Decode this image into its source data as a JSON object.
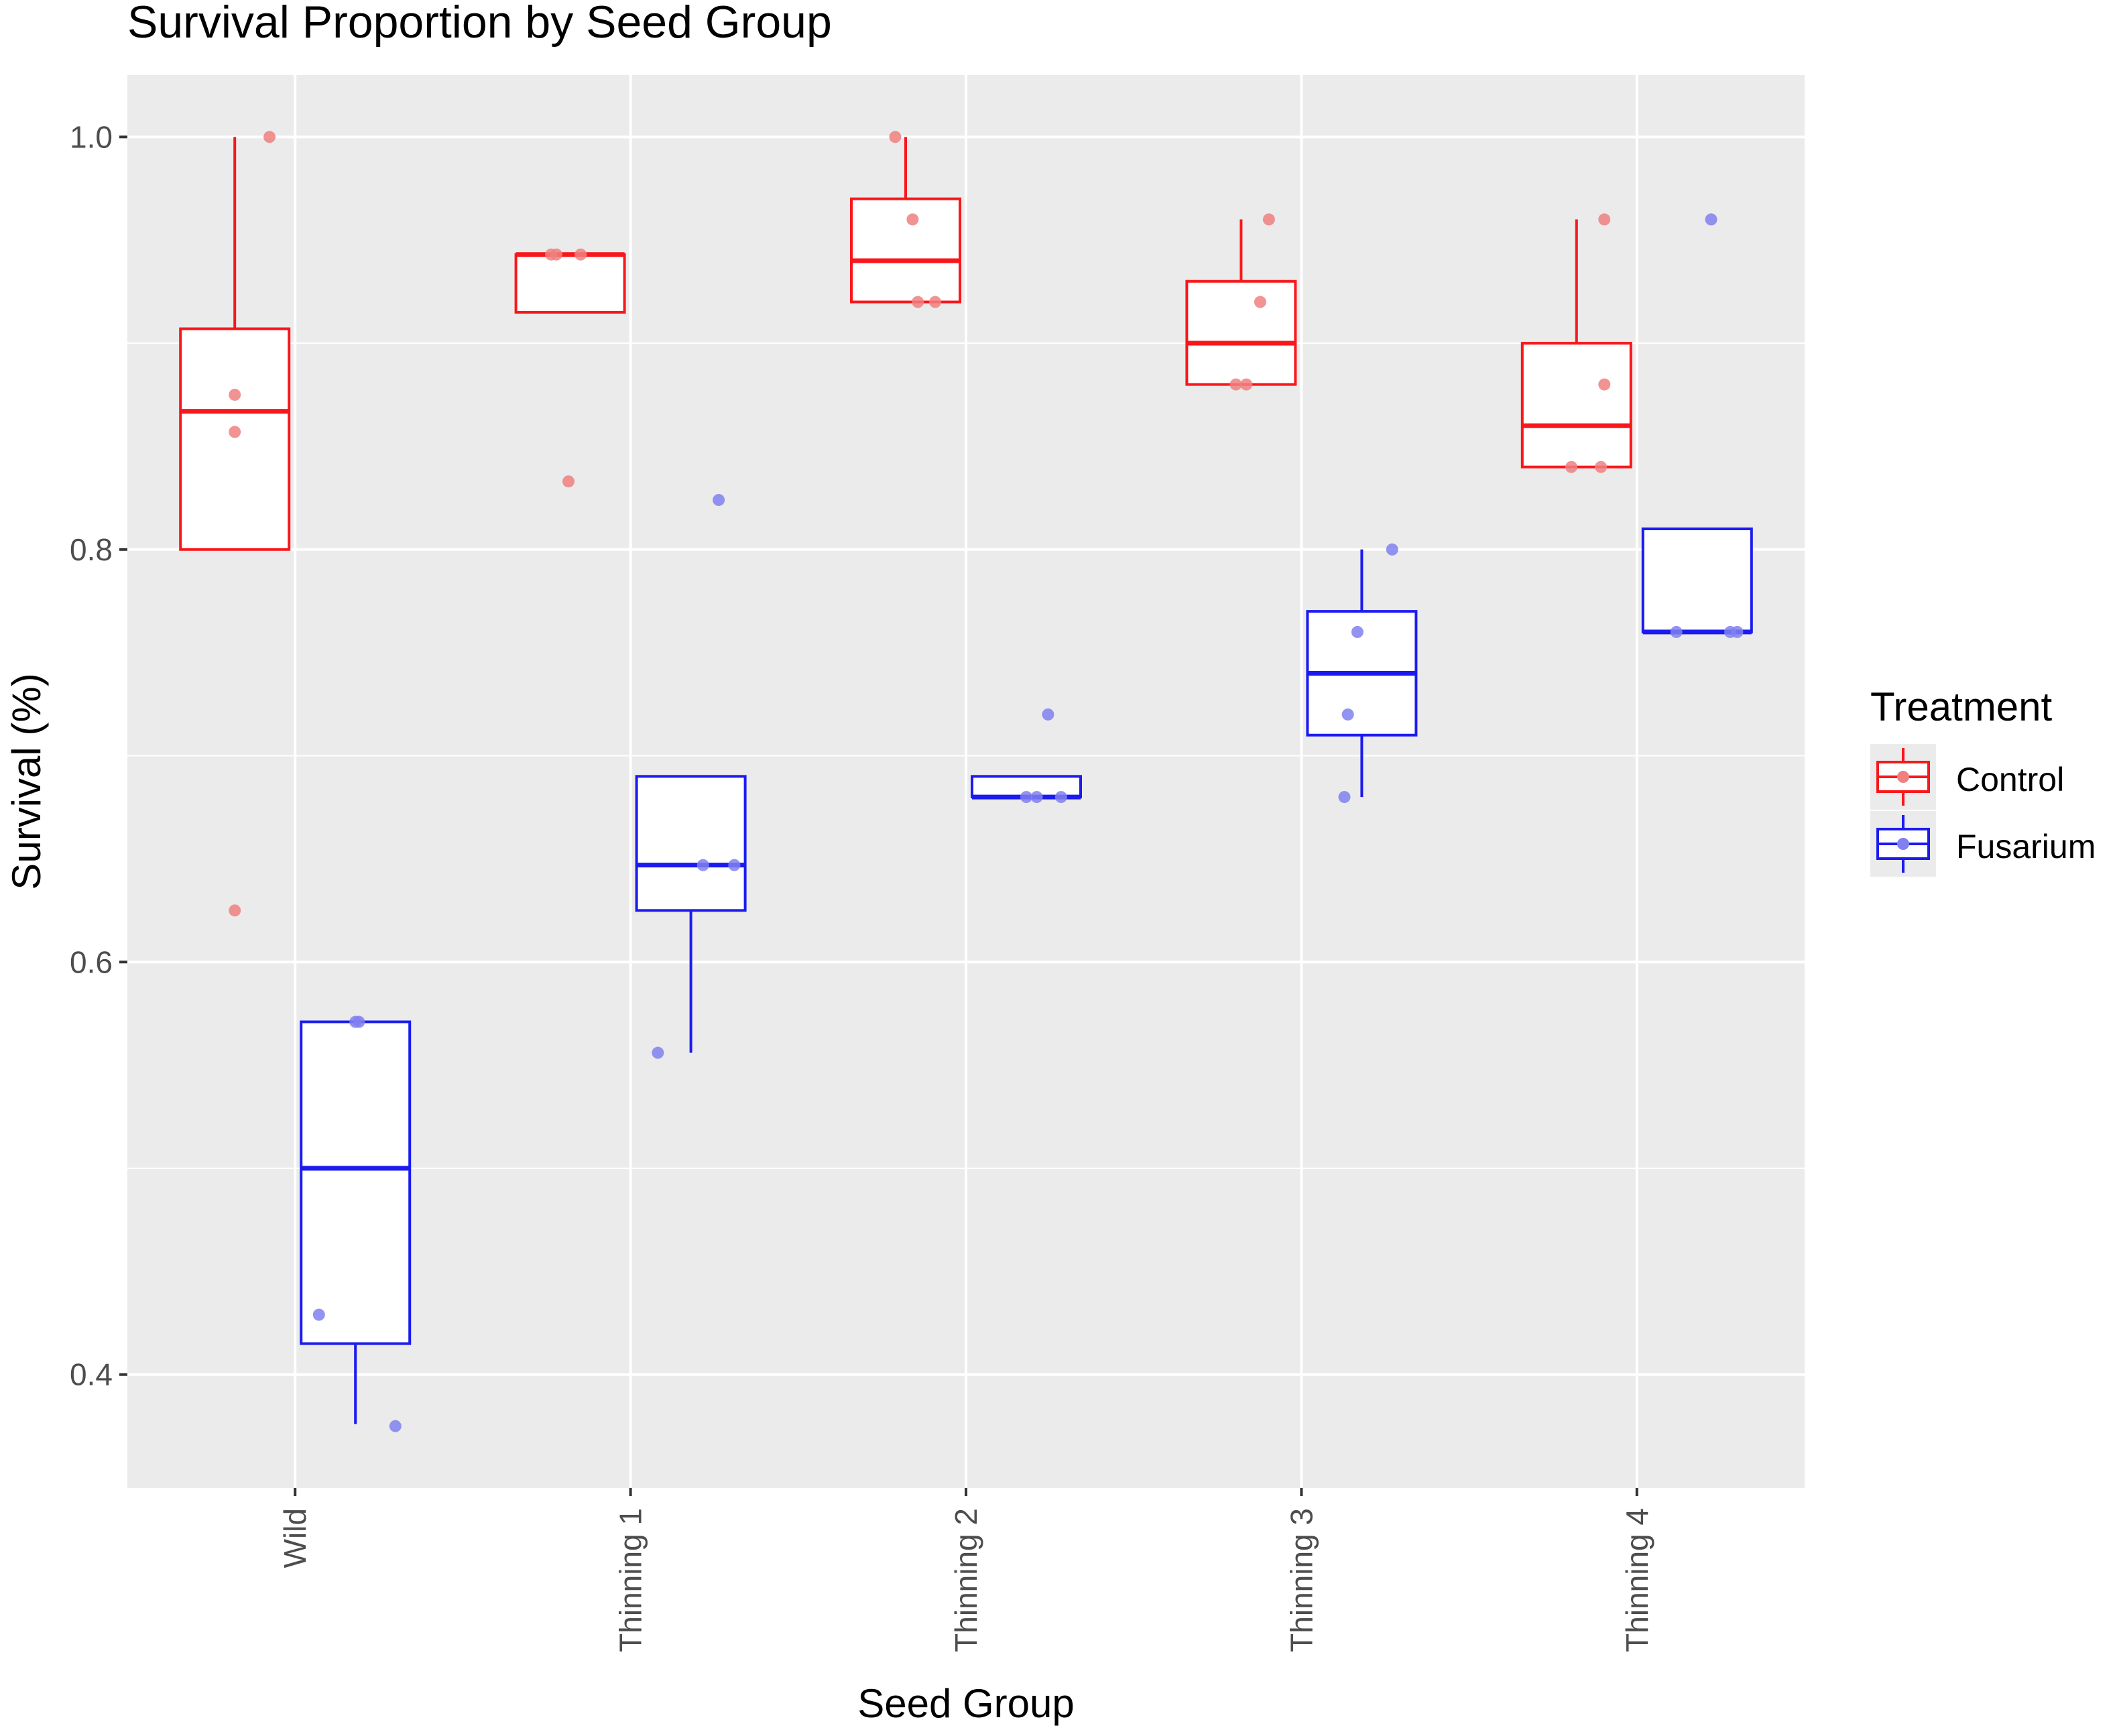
{
  "chart_data": {
    "type": "boxplot",
    "title": "Survival Proportion by Seed Group",
    "xlabel": "Seed Group",
    "ylabel": "Survival (%)",
    "ylim": [
      0.345,
      1.03
    ],
    "yticks": [
      0.4,
      0.6,
      0.8,
      1.0
    ],
    "ytick_labels": [
      "0.4",
      "0.6",
      "0.8",
      "1.0"
    ],
    "categories": [
      "Wild",
      "Thinning 1",
      "Thinning 2",
      "Thinning 3",
      "Thinning 4"
    ],
    "legend": {
      "title": "Treatment",
      "position": "right",
      "entries": [
        "Control",
        "Fusarium"
      ]
    },
    "colors": {
      "panel_bg": "#ebebeb",
      "grid": "#ffffff",
      "control": "#f8171b",
      "fusarium": "#1b1bf0",
      "control_point": "#f08080",
      "fusarium_point": "#8080f0",
      "text": "#000000",
      "tick_text": "#4d4d4d"
    },
    "series": [
      {
        "name": "Control",
        "boxes": [
          {
            "category": "Wild",
            "q1": 0.8,
            "median": 0.867,
            "q3": 0.907,
            "whisker_low": 0.8,
            "whisker_high": 1.0
          },
          {
            "category": "Thinning 1",
            "q1": 0.915,
            "median": 0.943,
            "q3": 0.943,
            "whisker_low": 0.915,
            "whisker_high": 0.943
          },
          {
            "category": "Thinning 2",
            "q1": 0.92,
            "median": 0.94,
            "q3": 0.97,
            "whisker_low": 0.92,
            "whisker_high": 1.0
          },
          {
            "category": "Thinning 3",
            "q1": 0.88,
            "median": 0.9,
            "q3": 0.93,
            "whisker_low": 0.88,
            "whisker_high": 0.96
          },
          {
            "category": "Thinning 4",
            "q1": 0.84,
            "median": 0.86,
            "q3": 0.9,
            "whisker_low": 0.84,
            "whisker_high": 0.96
          }
        ],
        "points": [
          {
            "category": "Wild",
            "values": [
              1.0,
              0.875,
              0.857,
              0.625
            ],
            "jitter": [
              0.9,
              0.5,
              0.5,
              0.5
            ]
          },
          {
            "category": "Thinning 1",
            "values": [
              0.943,
              0.943,
              0.943,
              0.833
            ],
            "jitter": [
              0.28,
              0.34,
              0.62,
              0.48
            ]
          },
          {
            "category": "Thinning 2",
            "values": [
              1.0,
              0.96,
              0.92,
              0.92
            ],
            "jitter": [
              0.38,
              0.58,
              0.64,
              0.84
            ]
          },
          {
            "category": "Thinning 3",
            "values": [
              0.96,
              0.92,
              0.88,
              0.88
            ],
            "jitter": [
              0.82,
              0.72,
              0.44,
              0.56
            ]
          },
          {
            "category": "Thinning 4",
            "values": [
              0.96,
              0.88,
              0.84,
              0.84
            ],
            "jitter": [
              0.82,
              0.82,
              0.44,
              0.78
            ]
          }
        ]
      },
      {
        "name": "Fusarium",
        "boxes": [
          {
            "category": "Wild",
            "q1": 0.415,
            "median": 0.5,
            "q3": 0.571,
            "whisker_low": 0.376,
            "whisker_high": 0.571
          },
          {
            "category": "Thinning 1",
            "q1": 0.625,
            "median": 0.647,
            "q3": 0.69,
            "whisker_low": 0.556,
            "whisker_high": 0.69
          },
          {
            "category": "Thinning 2",
            "q1": 0.68,
            "median": 0.68,
            "q3": 0.69,
            "whisker_low": 0.68,
            "whisker_high": 0.69
          },
          {
            "category": "Thinning 3",
            "q1": 0.71,
            "median": 0.74,
            "q3": 0.77,
            "whisker_low": 0.68,
            "whisker_high": 0.8
          },
          {
            "category": "Thinning 4",
            "q1": 0.76,
            "median": 0.76,
            "q3": 0.81,
            "whisker_low": 0.76,
            "whisker_high": 0.81
          }
        ],
        "points": [
          {
            "category": "Wild",
            "values": [
              0.571,
              0.571,
              0.429,
              0.375
            ],
            "jitter": [
              0.5,
              0.54,
              0.08,
              0.96
            ]
          },
          {
            "category": "Thinning 1",
            "values": [
              0.824,
              0.647,
              0.647,
              0.556
            ],
            "jitter": [
              0.82,
              0.64,
              1.0,
              0.12
            ]
          },
          {
            "category": "Thinning 2",
            "values": [
              0.72,
              0.68,
              0.68,
              0.68
            ],
            "jitter": [
              0.75,
              0.5,
              0.62,
              0.9
            ]
          },
          {
            "category": "Thinning 3",
            "values": [
              0.8,
              0.76,
              0.72,
              0.68
            ],
            "jitter": [
              0.85,
              0.45,
              0.34,
              0.3
            ]
          },
          {
            "category": "Thinning 4",
            "values": [
              0.96,
              0.76,
              0.76,
              0.76
            ],
            "jitter": [
              0.66,
              0.26,
              0.88,
              0.96
            ]
          }
        ]
      }
    ]
  }
}
